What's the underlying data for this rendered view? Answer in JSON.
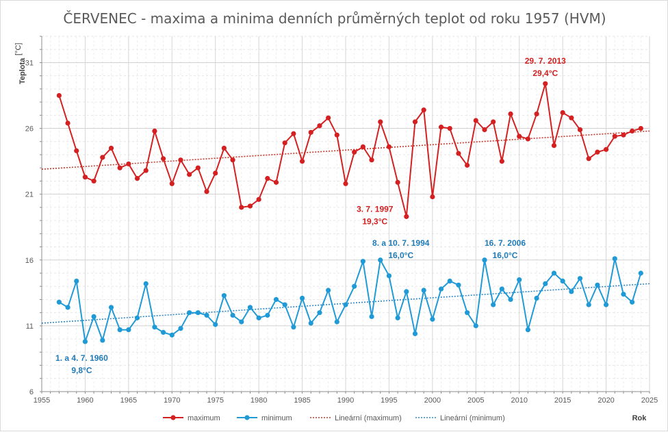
{
  "chart_data": {
    "type": "line",
    "title": "ČERVENEC - maxima a minima denních průměrných teplot od roku 1957 (HVM)",
    "ylabel": "Teplota",
    "ylabel_unit": "[°C]",
    "xlabel": "Rok",
    "xlim": [
      1955,
      2025
    ],
    "ylim": [
      6,
      33
    ],
    "x_ticks": [
      1955,
      1960,
      1965,
      1970,
      1975,
      1980,
      1985,
      1990,
      1995,
      2000,
      2005,
      2010,
      2015,
      2020,
      2025
    ],
    "y_ticks": [
      6,
      11,
      16,
      21,
      26,
      31
    ],
    "grid": true,
    "legend_position": "bottom",
    "x": [
      1957,
      1958,
      1959,
      1960,
      1961,
      1962,
      1963,
      1964,
      1965,
      1966,
      1967,
      1968,
      1969,
      1970,
      1971,
      1972,
      1973,
      1974,
      1975,
      1976,
      1977,
      1978,
      1979,
      1980,
      1981,
      1982,
      1983,
      1984,
      1985,
      1986,
      1987,
      1988,
      1989,
      1990,
      1991,
      1992,
      1993,
      1994,
      1995,
      1996,
      1997,
      1998,
      1999,
      2000,
      2001,
      2002,
      2003,
      2004,
      2005,
      2006,
      2007,
      2008,
      2009,
      2010,
      2011,
      2012,
      2013,
      2014,
      2015,
      2016,
      2017,
      2018,
      2019,
      2020,
      2021,
      2022,
      2023,
      2024
    ],
    "series": [
      {
        "name": "maximum",
        "color": "#d42020",
        "values": [
          28.5,
          26.4,
          24.3,
          22.3,
          22.0,
          23.8,
          24.5,
          23.0,
          23.3,
          22.2,
          22.8,
          25.8,
          23.7,
          21.8,
          23.6,
          22.5,
          23.0,
          21.2,
          22.6,
          24.5,
          23.6,
          20.0,
          20.1,
          20.6,
          22.2,
          21.9,
          24.9,
          25.6,
          23.5,
          25.7,
          26.2,
          26.8,
          25.5,
          21.8,
          24.2,
          24.6,
          23.6,
          26.5,
          24.6,
          21.9,
          19.3,
          26.5,
          27.4,
          20.8,
          26.1,
          26.0,
          24.1,
          23.2,
          26.6,
          25.9,
          26.5,
          23.5,
          27.1,
          25.4,
          25.2,
          27.1,
          29.4,
          24.7,
          27.2,
          26.8,
          25.9,
          23.7,
          24.2,
          24.4,
          25.4,
          25.5,
          25.8,
          26.0
        ]
      },
      {
        "name": "minimum",
        "color": "#1f9ad6",
        "values": [
          12.8,
          12.4,
          14.4,
          9.8,
          11.7,
          9.9,
          12.4,
          10.7,
          10.7,
          11.6,
          14.2,
          10.9,
          10.5,
          10.3,
          10.8,
          12.0,
          12.0,
          11.8,
          11.1,
          13.3,
          11.8,
          11.3,
          12.4,
          11.6,
          11.8,
          13.0,
          12.6,
          10.9,
          13.1,
          11.2,
          12.0,
          13.7,
          11.3,
          12.6,
          14.0,
          15.9,
          11.7,
          16.0,
          14.8,
          11.6,
          13.6,
          10.4,
          13.7,
          11.5,
          13.8,
          14.4,
          14.1,
          12.0,
          11.0,
          16.0,
          12.6,
          13.8,
          13.0,
          14.5,
          10.7,
          13.1,
          14.2,
          15.0,
          14.4,
          13.6,
          14.6,
          12.6,
          14.1,
          12.6,
          16.1,
          13.4,
          12.8,
          15.0
        ]
      }
    ],
    "trendlines": [
      {
        "name": "Lineární (maximum)",
        "color": "#c0392b",
        "start": [
          1955,
          22.9
        ],
        "end": [
          2025,
          25.8
        ]
      },
      {
        "name": "Lineární (minimum)",
        "color": "#2e86c1",
        "start": [
          1955,
          11.2
        ],
        "end": [
          2025,
          14.2
        ]
      }
    ],
    "annotations": [
      {
        "line1": "29. 7. 2013",
        "line2": "29,4°C",
        "color": "red",
        "x": 2013,
        "y": 29.4,
        "side": "above"
      },
      {
        "line1": "3. 7. 1997",
        "line2": "19,3°C",
        "color": "red",
        "x": 1997,
        "y": 19.3,
        "side": "left-above"
      },
      {
        "line1": "8. a 10. 7. 1994",
        "line2": "16,0°C",
        "color": "blue",
        "x": 1994,
        "y": 16.0,
        "side": "right-above"
      },
      {
        "line1": "16. 7. 2006",
        "line2": "16,0°C",
        "color": "blue",
        "x": 2006,
        "y": 16.0,
        "side": "right-above"
      },
      {
        "line1": "1. a 4. 7. 1960",
        "line2": "9,8°C",
        "color": "blue",
        "x": 1960,
        "y": 9.8,
        "side": "below"
      }
    ],
    "legend": [
      "maximum",
      "minimum",
      "Lineární (maximum)",
      "Lineární (minimum)"
    ]
  }
}
